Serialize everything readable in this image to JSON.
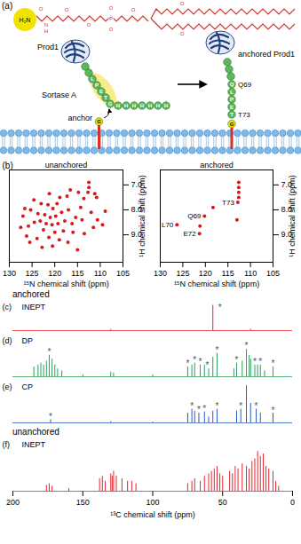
{
  "diagram": {
    "panel": "(a)",
    "molecule": [
      "H₂N",
      "O",
      "N",
      "H",
      "O",
      "O",
      "P",
      "O",
      "O",
      "O",
      "O",
      "O"
    ],
    "left": {
      "protein": "Prod1",
      "enzyme": "Sortase A",
      "anchor": "anchor",
      "motif": [
        "L",
        "P",
        "E",
        "T",
        "G"
      ],
      "tag": [
        "H",
        "H",
        "H",
        "H",
        "H",
        "H",
        "H"
      ],
      "anchor_residue": "G"
    },
    "right": {
      "protein": "anchored Prod1",
      "residues": [
        "Q",
        "L",
        "P",
        "E",
        "T"
      ],
      "labels": [
        "Q69",
        "T73"
      ],
      "anchor_residue": "G"
    }
  },
  "chart_data": [
    {
      "type": "scatter",
      "panel": "(b)",
      "title": "unanchored",
      "xlabel": "¹⁵N chemical shift (ppm)",
      "ylabel": "¹H chemical shift (ppm)",
      "xlim": [
        130,
        105
      ],
      "xticks": [
        130,
        125,
        120,
        115,
        110,
        105
      ],
      "ylim": [
        10.1,
        6.4
      ],
      "yticks": [
        7,
        8,
        9
      ],
      "color": "#d7191c",
      "x": [
        112.5,
        112.5,
        112.7,
        111.2,
        110.8,
        113.6,
        114.3,
        116.6,
        117.3,
        118.9,
        119.5,
        121.2,
        120.4,
        121.5,
        123.0,
        124.6,
        125.3,
        126.6,
        127.0,
        123.7,
        122.2,
        121.0,
        119.8,
        118.5,
        117.0,
        115.4,
        114.0,
        112.0,
        108.9,
        109.5,
        110.6,
        116.2,
        117.8,
        119.3,
        120.6,
        121.9,
        123.2,
        124.5,
        125.8,
        127.5,
        122.5,
        120.0,
        118.1,
        116.0,
        113.5,
        121.3,
        119.0,
        123.9,
        125.5,
        117.1,
        120.5,
        122.8,
        115.0,
        126.2,
        111.5,
        114.8
      ],
      "y": [
        6.9,
        7.1,
        7.3,
        7.35,
        7.5,
        7.55,
        7.9,
        7.2,
        7.45,
        7.5,
        7.75,
        7.35,
        7.95,
        7.8,
        7.75,
        7.6,
        8.0,
        7.95,
        8.25,
        8.15,
        8.2,
        8.3,
        8.25,
        8.1,
        8.0,
        8.3,
        8.4,
        8.1,
        8.05,
        8.6,
        8.4,
        8.55,
        8.45,
        8.55,
        8.6,
        8.55,
        8.45,
        8.5,
        8.65,
        8.7,
        8.8,
        8.9,
        8.85,
        8.9,
        8.95,
        9.1,
        9.2,
        9.15,
        9.3,
        9.3,
        9.45,
        9.5,
        9.6,
        9.05,
        8.7,
        7.3
      ]
    },
    {
      "type": "scatter",
      "title": "anchored",
      "xlabel": "¹⁵N chemical shift (ppm)",
      "ylabel": "¹H chemical shift (ppm)",
      "xlim": [
        130,
        105
      ],
      "xticks": [
        130,
        125,
        120,
        115,
        110,
        105
      ],
      "ylim": [
        10.1,
        6.4
      ],
      "yticks": [
        7,
        8,
        9
      ],
      "color": "#d7191c",
      "x": [
        126.3,
        121.2,
        121.3,
        120.2,
        118.3,
        113.0,
        112.6,
        112.6,
        112.6,
        112.6,
        112.8
      ],
      "y": [
        8.6,
        8.65,
        8.95,
        8.25,
        7.9,
        8.4,
        6.9,
        7.1,
        7.3,
        7.5,
        7.7
      ],
      "annotations": [
        {
          "x": 126.3,
          "y": 8.6,
          "text": "L70"
        },
        {
          "x": 121.3,
          "y": 8.95,
          "text": "E72"
        },
        {
          "x": 120.2,
          "y": 8.25,
          "text": "Q69"
        },
        {
          "x": 112.8,
          "y": 7.7,
          "text": "T73"
        }
      ]
    },
    {
      "type": "spectrum",
      "group": "anchored",
      "panel": "(c)",
      "title": "INEPT",
      "color": "#e3262f",
      "xlim": [
        200,
        0
      ],
      "ylim": [
        0,
        1
      ],
      "tick_labels": false,
      "peaks": {
        "ppm": [
          130,
          57,
          30
        ],
        "height": [
          0.04,
          0.95,
          0.05
        ]
      },
      "annotations": [
        {
          "x": 52,
          "y": 0.85,
          "text": "*"
        }
      ]
    },
    {
      "type": "spectrum",
      "panel": "(d)",
      "title": "DP",
      "color": "#2ca05a",
      "xlim": [
        200,
        0
      ],
      "ylim": [
        0,
        1
      ],
      "tick_labels": false,
      "peaks": {
        "ppm": [
          185,
          182,
          180,
          178,
          176,
          174,
          172,
          170,
          168,
          165,
          150,
          130,
          128,
          100,
          75,
          72,
          70,
          66,
          63,
          60,
          57,
          54,
          42,
          40,
          36,
          33,
          31,
          30,
          27,
          25,
          23,
          20,
          14
        ],
        "height": [
          0.25,
          0.3,
          0.35,
          0.3,
          0.4,
          0.55,
          0.45,
          0.3,
          0.2,
          0.15,
          0.05,
          0.12,
          0.1,
          0.05,
          0.25,
          0.3,
          0.35,
          0.3,
          0.3,
          0.2,
          0.5,
          0.6,
          0.2,
          0.35,
          0.4,
          0.7,
          0.55,
          0.45,
          0.3,
          0.3,
          0.3,
          0.15,
          0.25
        ]
      },
      "annotations": [
        {
          "x": 174,
          "y": 0.62,
          "text": "*"
        },
        {
          "x": 75,
          "y": 0.33,
          "text": "*"
        },
        {
          "x": 70,
          "y": 0.43,
          "text": "*"
        },
        {
          "x": 66,
          "y": 0.38,
          "text": "*"
        },
        {
          "x": 61,
          "y": 0.3,
          "text": "*"
        },
        {
          "x": 54,
          "y": 0.68,
          "text": "*"
        },
        {
          "x": 40,
          "y": 0.43,
          "text": "*"
        },
        {
          "x": 33,
          "y": 0.78,
          "text": "*"
        },
        {
          "x": 27,
          "y": 0.38,
          "text": "*"
        },
        {
          "x": 23,
          "y": 0.38,
          "text": "*"
        },
        {
          "x": 14,
          "y": 0.33,
          "text": "*"
        }
      ]
    },
    {
      "type": "spectrum",
      "panel": "(e)",
      "title": "CP",
      "color": "#2b59c3",
      "xlim": [
        200,
        0
      ],
      "ylim": [
        0,
        1
      ],
      "tick_labels": false,
      "peaks": {
        "ppm": [
          173,
          130,
          100,
          75,
          72,
          70,
          67,
          63,
          60,
          57,
          54,
          40,
          37,
          33,
          30,
          26,
          23,
          14
        ],
        "height": [
          0.08,
          0.03,
          0.02,
          0.25,
          0.35,
          0.3,
          0.25,
          0.28,
          0.15,
          0.3,
          0.35,
          0.3,
          0.35,
          0.95,
          0.5,
          0.35,
          0.25,
          0.25
        ]
      },
      "annotations": [
        {
          "x": 173,
          "y": 0.15,
          "text": "*"
        },
        {
          "x": 72,
          "y": 0.42,
          "text": "*"
        },
        {
          "x": 67,
          "y": 0.33,
          "text": "*"
        },
        {
          "x": 63,
          "y": 0.35,
          "text": "*"
        },
        {
          "x": 54,
          "y": 0.42,
          "text": "*"
        },
        {
          "x": 37,
          "y": 0.42,
          "text": "*"
        },
        {
          "x": 26,
          "y": 0.42,
          "text": "*"
        },
        {
          "x": 14,
          "y": 0.32,
          "text": "*"
        }
      ]
    },
    {
      "type": "spectrum",
      "group": "unanchored",
      "panel": "(f)",
      "title": "INEPT",
      "color": "#e3262f",
      "xlim": [
        200,
        0
      ],
      "ylim": [
        0,
        1
      ],
      "tick_labels": "x",
      "xticks": [
        200,
        150,
        100,
        50,
        0
      ],
      "xlabel": "¹³C chemical shift (ppm)",
      "peaks": {
        "ppm": [
          176,
          174,
          172,
          160,
          138,
          136,
          134,
          130,
          129,
          128,
          126,
          122,
          118,
          115,
          112,
          75,
          72,
          70,
          66,
          63,
          60,
          58,
          56,
          54,
          52,
          50,
          45,
          43,
          41,
          39,
          36,
          33,
          31,
          29,
          27,
          25,
          23,
          21,
          19,
          17,
          14,
          12,
          10
        ],
        "height": [
          0.12,
          0.15,
          0.1,
          0.05,
          0.25,
          0.3,
          0.2,
          0.35,
          0.3,
          0.4,
          0.3,
          0.25,
          0.2,
          0.2,
          0.15,
          0.15,
          0.2,
          0.25,
          0.2,
          0.3,
          0.35,
          0.4,
          0.45,
          0.5,
          0.35,
          0.3,
          0.4,
          0.35,
          0.5,
          0.45,
          0.55,
          0.5,
          0.45,
          0.6,
          0.65,
          0.8,
          0.7,
          0.75,
          0.5,
          0.45,
          0.4,
          0.2,
          0.1
        ]
      }
    }
  ]
}
